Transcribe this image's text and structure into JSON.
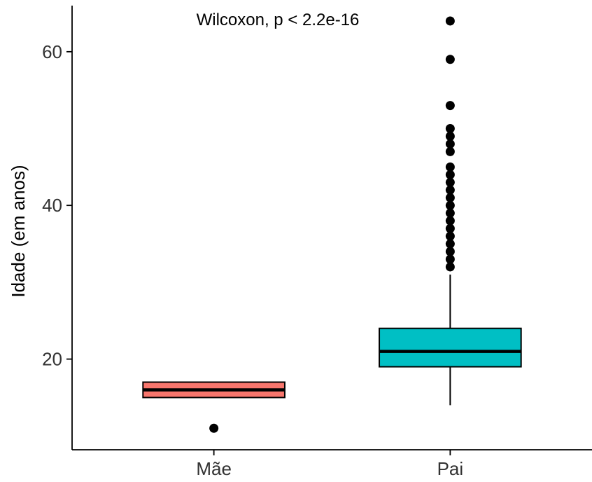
{
  "chart_data": {
    "type": "boxplot",
    "ylabel": "Idade (em anos)",
    "xlabel": "",
    "ylim": [
      8.2,
      66
    ],
    "yticks": [
      20,
      40,
      60
    ],
    "annotation": "Wilcoxon, p < 2.2e-16",
    "grid": false,
    "legend": "none",
    "categories": [
      "Mãe",
      "Pai"
    ],
    "boxes": [
      {
        "category": "Mãe",
        "fill": "#F8766D",
        "whisker_low": 15,
        "q1": 15,
        "median": 16,
        "q3": 17,
        "whisker_high": 17,
        "outliers": [
          11
        ]
      },
      {
        "category": "Pai",
        "fill": "#00BFC4",
        "whisker_low": 14,
        "q1": 19,
        "median": 21,
        "q3": 24,
        "whisker_high": 31,
        "outliers": [
          32,
          33,
          34,
          35,
          36,
          37,
          38,
          39,
          40,
          41,
          42,
          43,
          44,
          45,
          47,
          48,
          49,
          50,
          53,
          59,
          64
        ]
      }
    ]
  }
}
